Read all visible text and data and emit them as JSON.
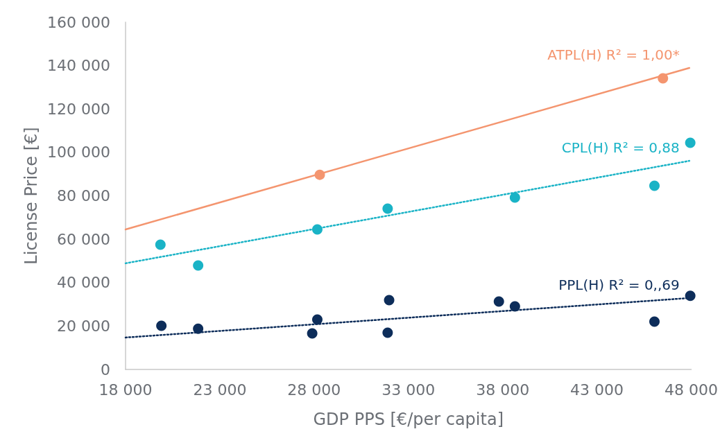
{
  "chart_data": {
    "type": "scatter",
    "xlabel": "GDP PPS [€/per capita]",
    "ylabel": "License Price [€]",
    "xlim": [
      18000,
      48000
    ],
    "xticks": [
      {
        "value": 18000,
        "label": "18 000"
      },
      {
        "value": 23000,
        "label": "23 000"
      },
      {
        "value": 28000,
        "label": "28 000"
      },
      {
        "value": 33000,
        "label": "33 000"
      },
      {
        "value": 38000,
        "label": "38 000"
      },
      {
        "value": 43000,
        "label": "43 000"
      },
      {
        "value": 48000,
        "label": "48 000"
      }
    ],
    "ylim": [
      0,
      160000
    ],
    "yticks": [
      0,
      {
        "value": 20000,
        "label": "20 000"
      },
      {
        "value": 40000,
        "label": "40 000"
      },
      {
        "value": 60000,
        "label": "60 000"
      },
      {
        "value": 80000,
        "label": "80 000"
      },
      {
        "value": 100000,
        "label": "100 000"
      },
      {
        "value": 120000,
        "label": "120 000"
      },
      {
        "value": 140000,
        "label": "140 000"
      },
      {
        "value": 160000,
        "label": "160 000"
      }
    ],
    "grid": false,
    "legend": false,
    "marker": "circle",
    "series": [
      {
        "type": "line",
        "name": "ATPL(H) R² = 1,00*",
        "color": "#f4956f",
        "line_style": "solid",
        "marker": "none",
        "x": [
          18000,
          47900
        ],
        "values": [
          64500,
          138900
        ]
      },
      {
        "type": "line",
        "name": "CPL(H) R² = 0,88",
        "color": "#1ab3c6",
        "line_style": "dotted",
        "marker": "none",
        "x": [
          18000,
          47900
        ],
        "values": [
          48900,
          96100
        ]
      },
      {
        "type": "line",
        "name": "PPL(H) R² = 0,,69",
        "color": "#0d2d5a",
        "line_style": "dotted",
        "marker": "none",
        "x": [
          18000,
          47900
        ],
        "values": [
          14700,
          32900
        ]
      },
      {
        "color": "#f4956f",
        "x": [
          28300,
          46500
        ],
        "values": [
          89700,
          134100
        ]
      },
      {
        "color": "#1ab3c6",
        "x": [
          19850,
          21850,
          28170,
          31900,
          38650,
          46050,
          47950
        ],
        "values": [
          57500,
          47900,
          64500,
          74100,
          79200,
          84600,
          104400
        ]
      },
      {
        "color": "#0d2d5a",
        "x": [
          19900,
          21850,
          27900,
          28170,
          31980,
          31900,
          37800,
          38650,
          46050,
          47950
        ],
        "values": [
          20100,
          18800,
          16600,
          23000,
          31900,
          16900,
          31300,
          29100,
          22000,
          33900
        ]
      }
    ]
  }
}
